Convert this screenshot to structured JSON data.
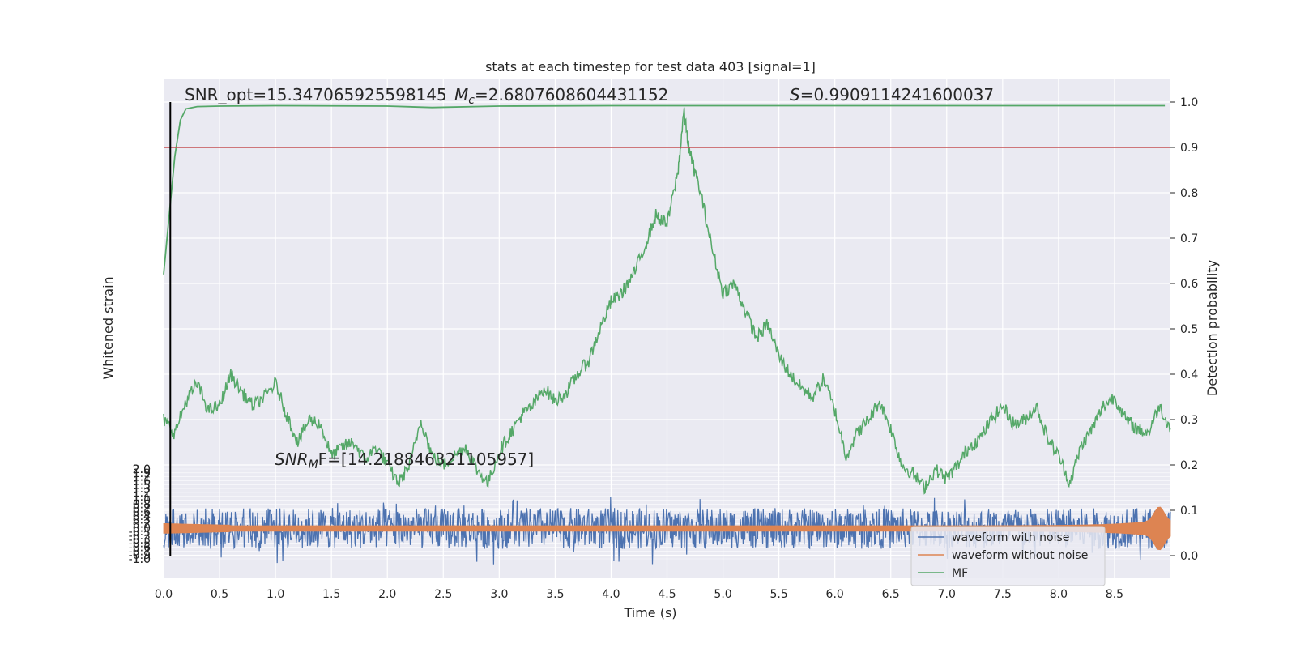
{
  "chart_data": {
    "type": "line",
    "title": "stats at each timestep for test data 403 [signal=1]",
    "xlabel": "Time (s)",
    "ylabel_left": "Whitened strain",
    "ylabel_right": "Detection probability",
    "xlim": [
      0,
      9.0
    ],
    "ylim_right": [
      -0.05,
      1.05
    ],
    "x_ticks": [
      "0.0",
      "0.5",
      "1.0",
      "1.5",
      "2.0",
      "2.5",
      "3.0",
      "3.5",
      "4.0",
      "4.5",
      "5.0",
      "5.5",
      "6.0",
      "6.5",
      "7.0",
      "7.5",
      "8.0",
      "8.5"
    ],
    "y_ticks_right": [
      "0.0",
      "0.1",
      "0.2",
      "0.3",
      "0.4",
      "0.5",
      "0.6",
      "0.7",
      "0.8",
      "0.9",
      "1.0"
    ],
    "y_ticks_left_top": "2.0",
    "y_ticks_left_bottom": "1.0",
    "grid": true,
    "legend_position": "bottom-right",
    "threshold": 0.9,
    "marker_time": 0.06,
    "annotations": {
      "snr_opt": "SNR_opt=15.347065925598145",
      "mc_prefix": "M",
      "mc_sub": "c",
      "mc_value": "=2.6807608604431152",
      "s_prefix": "S",
      "s_value": "=0.9909114241600037",
      "snr_mf_prefix": "SNR",
      "snr_mf_sub": "M",
      "snr_mf_value": "F=[14.218846321105957]"
    },
    "series": [
      {
        "name": "waveform with noise",
        "color": "#4c72b0",
        "band_center": 0.06,
        "band_halfwidth": 0.045
      },
      {
        "name": "waveform without noise",
        "color": "#dd8452",
        "band_center": 0.06,
        "band_halfwidth": 0.006,
        "peak_x": 8.9
      },
      {
        "name": "MF",
        "color": "#55a868",
        "x": [
          0.0,
          0.1,
          0.2,
          0.3,
          0.4,
          0.5,
          0.6,
          0.7,
          0.8,
          0.9,
          1.0,
          1.1,
          1.2,
          1.3,
          1.4,
          1.5,
          1.6,
          1.7,
          1.8,
          1.9,
          2.0,
          2.1,
          2.2,
          2.3,
          2.4,
          2.5,
          2.6,
          2.7,
          2.8,
          2.9,
          3.0,
          3.1,
          3.2,
          3.3,
          3.4,
          3.5,
          3.6,
          3.7,
          3.8,
          3.9,
          4.0,
          4.1,
          4.2,
          4.3,
          4.4,
          4.5,
          4.6,
          4.65,
          4.7,
          4.8,
          4.9,
          5.0,
          5.1,
          5.2,
          5.3,
          5.4,
          5.5,
          5.6,
          5.7,
          5.8,
          5.9,
          6.0,
          6.1,
          6.2,
          6.3,
          6.4,
          6.5,
          6.6,
          6.7,
          6.8,
          6.9,
          7.0,
          7.1,
          7.2,
          7.3,
          7.4,
          7.5,
          7.6,
          7.7,
          7.8,
          7.9,
          8.0,
          8.1,
          8.2,
          8.3,
          8.4,
          8.5,
          8.6,
          8.7,
          8.8,
          8.9,
          9.0
        ],
        "y": [
          0.3,
          0.27,
          0.34,
          0.38,
          0.32,
          0.33,
          0.4,
          0.36,
          0.33,
          0.35,
          0.38,
          0.31,
          0.25,
          0.3,
          0.29,
          0.22,
          0.24,
          0.25,
          0.21,
          0.24,
          0.2,
          0.16,
          0.2,
          0.3,
          0.22,
          0.2,
          0.22,
          0.24,
          0.19,
          0.16,
          0.23,
          0.27,
          0.31,
          0.33,
          0.37,
          0.34,
          0.36,
          0.4,
          0.43,
          0.5,
          0.56,
          0.58,
          0.62,
          0.68,
          0.75,
          0.73,
          0.85,
          0.98,
          0.89,
          0.8,
          0.68,
          0.58,
          0.6,
          0.54,
          0.48,
          0.51,
          0.44,
          0.4,
          0.37,
          0.35,
          0.39,
          0.32,
          0.22,
          0.27,
          0.3,
          0.34,
          0.28,
          0.2,
          0.18,
          0.15,
          0.19,
          0.17,
          0.2,
          0.24,
          0.26,
          0.3,
          0.33,
          0.29,
          0.3,
          0.33,
          0.26,
          0.22,
          0.16,
          0.24,
          0.28,
          0.33,
          0.35,
          0.3,
          0.28,
          0.27,
          0.33,
          0.28
        ]
      }
    ],
    "prob_curve": {
      "color": "#55a868",
      "x": [
        0.0,
        0.05,
        0.1,
        0.15,
        0.2,
        0.3,
        0.5,
        1.0,
        2.0,
        2.4,
        3.0,
        4.0,
        5.0,
        6.0,
        7.0,
        8.0,
        8.95
      ],
      "y": [
        0.62,
        0.75,
        0.88,
        0.96,
        0.985,
        0.99,
        0.991,
        0.992,
        0.991,
        0.988,
        0.991,
        0.992,
        0.992,
        0.992,
        0.992,
        0.992,
        0.992
      ]
    }
  },
  "legend": {
    "items": [
      {
        "label": "waveform with noise",
        "color": "#4c72b0"
      },
      {
        "label": "waveform without noise",
        "color": "#dd8452"
      },
      {
        "label": "MF",
        "color": "#55a868"
      }
    ]
  }
}
